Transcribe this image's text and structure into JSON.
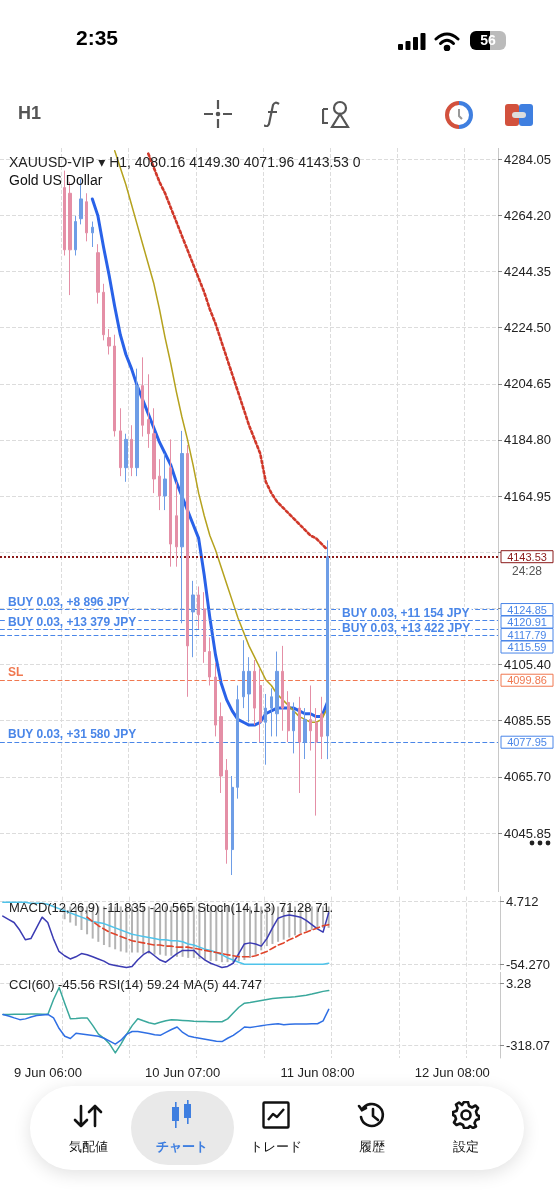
{
  "chart_data": [
    {
      "type": "other",
      "annotations": [
        "2:35",
        "56",
        "H1"
      ]
    },
    {
      "type": "candlestick",
      "title": "XAUUSD-VIP ▾ H1, 4080.16 4149.30 4071.96 4143.53 0",
      "subtitle": "Gold US Dollar",
      "categories": [
        null,
        null,
        null,
        null,
        null,
        null,
        null,
        null,
        null,
        null,
        null,
        null,
        null,
        null,
        null,
        null,
        null,
        null,
        null,
        null,
        null,
        null,
        null,
        null,
        null,
        null,
        null,
        null,
        null,
        null,
        null,
        null,
        null,
        null,
        null,
        null,
        null,
        null,
        null,
        null,
        null,
        null,
        null,
        null,
        null,
        null,
        null,
        null,
        null,
        null,
        null,
        null,
        null,
        null,
        null,
        null,
        null,
        null,
        null,
        null,
        null,
        null,
        null,
        null,
        null,
        null,
        null,
        null,
        null,
        null,
        null,
        null,
        null,
        null,
        null,
        null,
        null,
        null,
        null,
        null,
        null,
        null,
        null,
        null,
        null,
        null,
        null,
        null,
        null
      ],
      "ohlc": [
        null,
        null,
        null,
        null,
        null,
        null,
        null,
        null,
        null,
        null,
        null,
        [
          4274,
          4280,
          4250,
          4252
        ],
        [
          4272,
          4276,
          4236,
          4252
        ],
        [
          4252,
          4264,
          4250,
          4262
        ],
        [
          4263,
          4277,
          4261,
          4270
        ],
        [
          4269,
          4272,
          4255,
          4258
        ],
        [
          4258,
          4262,
          4253,
          4260
        ],
        [
          4251,
          4254,
          4233,
          4237
        ],
        [
          4237,
          4240,
          4220,
          4222
        ],
        [
          4221,
          4224,
          4215,
          4218
        ],
        [
          4218,
          4222,
          4186,
          4188
        ],
        [
          4188,
          4196,
          4172,
          4175
        ],
        [
          4175,
          4187,
          4170,
          4185
        ],
        [
          4185,
          4190,
          4172,
          4175
        ],
        [
          4175,
          4210,
          4172,
          4204
        ],
        [
          4204,
          4214,
          4186,
          4190
        ],
        [
          4192,
          4208,
          4182,
          4187
        ],
        [
          4187,
          4196,
          4166,
          4171
        ],
        [
          4172,
          4178,
          4160,
          4165
        ],
        [
          4165,
          4180,
          4160,
          4171
        ],
        [
          4175,
          4185,
          4140,
          4148
        ],
        [
          4158,
          4170,
          4140,
          4147
        ],
        [
          4147,
          4188,
          4120,
          4180
        ],
        [
          4180,
          4183,
          4094,
          4112
        ],
        [
          4124,
          4135,
          4108,
          4130
        ],
        [
          4130,
          4133,
          4118,
          4123
        ],
        [
          4125,
          4131,
          4106,
          4110
        ],
        [
          4110,
          4115,
          4098,
          4101
        ],
        [
          4101,
          4106,
          4080,
          4084
        ],
        [
          4087,
          4092,
          4060,
          4066
        ],
        [
          4068,
          4072,
          4035,
          4040
        ],
        [
          4040,
          4066,
          4031,
          4062
        ],
        [
          4062,
          4098,
          4058,
          4093
        ],
        [
          4094,
          4114,
          4090,
          4103
        ],
        [
          4095,
          4108,
          4085,
          4103
        ],
        [
          4103,
          4107,
          4084,
          4090
        ],
        [
          4098,
          4104,
          4078,
          4085
        ],
        [
          4085,
          4095,
          4070,
          4090
        ],
        [
          4090,
          4097,
          4080,
          4094
        ],
        [
          4088,
          4110,
          4080,
          4103
        ],
        [
          4103,
          4112,
          4082,
          4090
        ],
        [
          4092,
          4096,
          4078,
          4082
        ],
        [
          4082,
          4092,
          4074,
          4089
        ],
        [
          4090,
          4094,
          4060,
          4078
        ],
        [
          4078,
          4090,
          4072,
          4086
        ],
        [
          4086,
          4098,
          4075,
          4082
        ],
        [
          4085,
          4090,
          4052,
          4078
        ],
        [
          4088,
          4094,
          4072,
          4080
        ],
        [
          4080.16,
          4149.3,
          4071.96,
          4143.53
        ],
        null,
        null,
        null,
        null,
        null,
        null,
        null,
        null,
        null,
        null,
        null,
        null,
        null,
        null,
        null,
        null,
        null,
        null,
        null,
        null,
        null,
        null,
        null,
        null,
        null,
        null,
        null,
        null,
        null,
        null
      ],
      "colors": [
        null,
        null,
        null,
        null,
        null,
        null,
        null,
        null,
        null,
        null,
        null,
        "#e48fa6",
        "#e48fa6",
        "#6e9de6",
        "#6e9de6",
        "#e48fa6",
        "#6e9de6",
        "#e48fa6",
        "#e48fa6",
        "#e48fa6",
        "#e48fa6",
        "#e48fa6",
        "#6e9de6",
        "#e48fa6",
        "#6e9de6",
        "#e48fa6",
        "#e48fa6",
        "#e48fa6",
        "#e48fa6",
        "#6e9de6",
        "#e48fa6",
        "#e48fa6",
        "#6e9de6",
        "#e48fa6",
        "#6e9de6",
        "#e48fa6",
        "#e48fa6",
        "#e48fa6",
        "#e48fa6",
        "#e48fa6",
        "#e48fa6",
        "#6e9de6",
        "#6e9de6",
        "#6e9de6",
        "#6e9de6",
        "#e48fa6",
        "#e48fa6",
        "#6e9de6",
        "#6e9de6",
        "#6e9de6",
        "#e48fa6",
        "#e48fa6",
        "#6e9de6",
        "#e48fa6",
        "#6e9de6",
        "#e48fa6",
        "#e48fa6",
        "#e48fa6",
        "#6e9de6",
        null,
        null,
        null,
        null,
        null,
        null,
        null,
        null,
        null,
        null,
        null,
        null,
        null,
        null,
        null,
        null,
        null,
        null,
        null,
        null,
        null,
        null,
        null,
        null,
        null,
        null,
        null,
        null,
        null,
        null
      ],
      "series": [
        {
          "type": "line",
          "color": "#2962e8",
          "line_style": "solid",
          "values": [
            null,
            null,
            null,
            null,
            null,
            null,
            null,
            null,
            null,
            null,
            null,
            null,
            null,
            null,
            null,
            null,
            4270,
            4264,
            4253,
            4243,
            4232,
            4222,
            4215,
            4210,
            4204,
            4199,
            4194,
            4189,
            4184,
            4180,
            4176,
            4170,
            4165,
            4160,
            4155,
            4150,
            4137,
            4122,
            4109,
            4099,
            4093,
            4089,
            4086,
            4085,
            4084,
            4084,
            4085,
            4088,
            4089,
            4090,
            4090,
            4090,
            4090,
            4089,
            4088,
            4088,
            4087,
            4087,
            4092,
            null,
            null,
            null,
            null,
            null,
            null,
            null,
            null,
            null,
            null,
            null,
            null,
            null,
            null,
            null,
            null,
            null,
            null,
            null,
            null,
            null,
            null,
            null,
            null,
            null,
            null,
            null,
            null,
            null,
            null
          ]
        },
        {
          "type": "line",
          "color": "#d0382a",
          "line_style": "dotted",
          "values": [
            null,
            null,
            null,
            null,
            null,
            null,
            null,
            null,
            null,
            null,
            null,
            null,
            null,
            null,
            null,
            null,
            null,
            null,
            null,
            null,
            null,
            null,
            null,
            null,
            null,
            null,
            4286,
            4281,
            4276,
            4272,
            4267,
            4262,
            4257,
            4252,
            4247,
            4242,
            4237,
            4231,
            4226,
            4220,
            4214,
            4208,
            4202,
            4196,
            4190,
            4185,
            4180,
            4170,
            4166,
            4163,
            4161,
            4159,
            4157,
            4155,
            4153,
            4151,
            4150,
            4148,
            4146,
            null,
            null,
            null,
            null,
            null,
            null,
            null,
            null,
            null,
            null,
            null,
            null,
            null,
            null,
            null,
            null,
            null,
            null,
            null,
            null,
            null,
            null,
            null,
            null,
            null,
            null,
            null,
            null,
            null,
            null
          ]
        },
        {
          "type": "line",
          "color": "#b5a21e",
          "line_style": "solid",
          "values": [
            null,
            null,
            null,
            null,
            null,
            null,
            null,
            null,
            null,
            null,
            null,
            null,
            null,
            null,
            null,
            null,
            null,
            null,
            null,
            null,
            4287,
            4281,
            4275,
            4268,
            4261,
            4254,
            4247,
            4240,
            4231,
            4221,
            4212,
            4202,
            4193,
            4185,
            4176,
            4166,
            4158,
            4151,
            4146,
            4140,
            4134,
            4128,
            4122,
            4117,
            4112,
            4108,
            4104,
            4100,
            4098,
            4095,
            4093,
            4091,
            4089,
            4087,
            4086,
            4085,
            4085,
            4086,
            4090,
            null,
            null,
            null,
            null,
            null,
            null,
            null,
            null,
            null,
            null,
            null,
            null,
            null,
            null,
            null,
            null,
            null,
            null,
            null,
            null,
            null,
            null,
            null,
            null,
            null,
            null,
            null,
            null,
            null,
            null
          ]
        }
      ],
      "ylim": [
        4025,
        4288
      ],
      "yticks": [
        4284.05,
        {
          "value": 4264.2,
          "label": "4264.20"
        },
        4244.35,
        {
          "value": 4224.5,
          "label": "4224.50"
        },
        4204.65,
        {
          "value": 4184.8,
          "label": "4184.80"
        },
        4164.95,
        {
          "value": 4145.1,
          "label": null
        },
        {
          "value": 4125.25,
          "label": null
        },
        {
          "value": 4105.4,
          "label": "4105.40"
        },
        4085.55,
        {
          "value": 4065.7,
          "label": "4065.70"
        },
        4045.85
      ],
      "tick_labels": "y",
      "grid": true,
      "ref_lines": [
        {
          "axis": "y",
          "value": 4143.53,
          "color": "#8b1a1a",
          "line_style": "dotted"
        },
        {
          "axis": "y",
          "value": 4124.85,
          "label": "BUY 0.03, +8 896 JPY",
          "color": "#4a86e8",
          "line_style": "dashed"
        },
        {
          "axis": "y",
          "value": 4120.91,
          "label": "BUY 0.03, +11 154 JPY",
          "color": "#4a86e8",
          "line_style": "dashed"
        },
        {
          "axis": "y",
          "value": 4117.79,
          "label": "BUY 0.03, +13 379 JPY",
          "color": "#4a86e8",
          "line_style": "dashed"
        },
        {
          "axis": "y",
          "value": 4115.59,
          "label": "BUY 0.03, +13 422 JPY",
          "color": "#4a86e8",
          "line_style": "dashed"
        },
        {
          "axis": "y",
          "value": 4099.86,
          "label": "SL",
          "color": "#f07850",
          "line_style": "dashed"
        },
        {
          "axis": "y",
          "value": 4077.95,
          "label": "BUY 0.03, +31 580 JPY",
          "color": "#4a86e8",
          "line_style": "dashed"
        }
      ],
      "annotations": [
        "4143.53",
        "4124.85",
        "4120.91",
        "4117.79",
        "4115.59",
        "4099.86",
        "4077.95",
        "24:28"
      ]
    },
    {
      "type": "bar",
      "title": "MACD(12,26,9) -11.835 -20.565 Stoch(14,1,3) 71.28 71.",
      "categories": [
        null,
        null,
        null,
        null,
        null,
        null,
        null,
        null,
        null,
        null,
        null,
        null,
        null,
        null,
        null,
        null,
        null,
        null,
        null,
        null,
        null,
        null,
        null,
        null,
        null,
        null,
        null,
        null,
        null,
        null,
        null,
        null,
        null,
        null,
        null,
        null,
        null,
        null,
        null,
        null,
        null,
        null,
        null,
        null,
        null,
        null,
        null,
        null,
        null,
        null,
        null,
        null,
        null,
        null,
        null,
        null,
        null,
        null,
        null,
        null,
        null,
        null,
        null,
        null,
        null,
        null,
        null,
        null,
        null,
        null,
        null,
        null,
        null,
        null,
        null,
        null,
        null,
        null,
        null,
        null,
        null,
        null,
        null,
        null,
        null,
        null,
        null,
        null,
        null
      ],
      "ylim": [
        -58.7,
        9.1
      ],
      "yticks": [
        4.712,
        {
          "value": -54.27,
          "label": "-54.270"
        }
      ],
      "tick_labels": "y",
      "grid": true,
      "series": [
        {
          "color": "#b4b4b4",
          "values": [
            null,
            null,
            null,
            null,
            null,
            null,
            null,
            null,
            null,
            null,
            null,
            -12,
            -15,
            -18,
            -22,
            -26,
            -30,
            -33,
            -36,
            -38,
            -40,
            -42,
            -43,
            -43,
            -43,
            -44,
            -44,
            -45,
            -45,
            -46,
            -46,
            -47,
            -47,
            -48,
            -48,
            -49,
            -50,
            -51,
            -51,
            -52,
            -52,
            -52,
            -51,
            -50,
            -48,
            -45,
            -41,
            -37,
            -35,
            -33,
            -31,
            -29,
            -27,
            -25,
            -23,
            -22,
            -21,
            -20,
            -20,
            null,
            null,
            null,
            null,
            null,
            null,
            null,
            null,
            null,
            null,
            null,
            null,
            null,
            null,
            null,
            null,
            null,
            null,
            null,
            null,
            null,
            null,
            null,
            null,
            null,
            null,
            null,
            null,
            null,
            null
          ]
        },
        {
          "type": "line",
          "color": "#4fc3ea",
          "line_style": "solid",
          "values": [
            4,
            4,
            4,
            4,
            4,
            3,
            3,
            3,
            2,
            0,
            -2,
            -4,
            -6,
            -8,
            -10,
            -12,
            -14,
            -15,
            -16,
            -18,
            -20,
            -22,
            -24,
            -26,
            -27,
            -28,
            -29,
            -30,
            -31,
            -31,
            -32,
            -32,
            -33,
            -35,
            -36,
            -38,
            -40,
            -41,
            -43,
            -45,
            -48,
            -50,
            -52,
            -54,
            -54,
            -54,
            -54,
            -54,
            -54,
            -54,
            -54,
            -54,
            -54,
            -54,
            -54,
            -54,
            -54,
            -54,
            -53,
            null,
            null,
            null,
            null,
            null,
            null,
            null,
            null,
            null,
            null,
            null,
            null,
            null,
            null,
            null,
            null,
            null,
            null,
            null,
            null,
            null,
            null,
            null,
            null,
            null,
            null,
            null,
            null,
            null,
            null
          ]
        },
        {
          "type": "line",
          "color": "#3b3bb3",
          "line_style": "solid",
          "values": [
            -9,
            -12,
            -15,
            -22,
            -31,
            -30,
            -20,
            -10,
            -15,
            -30,
            -42,
            -46,
            -49,
            -47,
            -44,
            -45,
            -47,
            -49,
            -51,
            -54,
            -55,
            -56,
            -57,
            -56,
            -50,
            -45,
            -42,
            -46,
            -50,
            -52,
            -48,
            -44,
            -41,
            -41,
            -41,
            -46,
            -50,
            -53,
            -55,
            -57,
            -56,
            -53,
            -44,
            -35,
            -34,
            -35,
            -37,
            -30,
            -20,
            -11,
            -9,
            -8,
            -9,
            -10,
            -13,
            -17,
            -21,
            -24,
            -6,
            null,
            null,
            null,
            null,
            null,
            null,
            null,
            null,
            null,
            null,
            null,
            null,
            null,
            null,
            null,
            null,
            null,
            null,
            null,
            null,
            null,
            null,
            null,
            null,
            null,
            null,
            null,
            null,
            null,
            null
          ]
        },
        {
          "type": "line",
          "color": "#e0442a",
          "line_style": "dashed",
          "values": [
            null,
            null,
            null,
            null,
            null,
            null,
            null,
            null,
            null,
            null,
            null,
            null,
            null,
            null,
            null,
            -10,
            -14,
            -18,
            -21,
            -24,
            -26,
            -28,
            -30,
            -32,
            -33,
            -34,
            -35,
            -36,
            -36,
            -37,
            -37,
            -38,
            -38,
            -38,
            -39,
            -40,
            -41,
            -42,
            -43,
            -44,
            -45,
            -46,
            -47,
            -47,
            -47,
            -46,
            -44,
            -42,
            -39,
            -36,
            -34,
            -31,
            -29,
            -26,
            -24,
            -22,
            -20,
            -18,
            -17,
            null,
            null,
            null,
            null,
            null,
            null,
            null,
            null,
            null,
            null,
            null,
            null,
            null,
            null,
            null,
            null,
            null,
            null,
            null,
            null,
            null,
            null,
            null,
            null,
            null,
            null,
            null,
            null,
            null,
            null
          ]
        }
      ]
    },
    {
      "type": "line",
      "title": "CCI(60) -45.56 RSI(14) 59.24 MA(5) 44.747",
      "categories": [
        null,
        null,
        null,
        null,
        null,
        null,
        null,
        null,
        "9 Jun 06:00",
        null,
        null,
        null,
        null,
        null,
        null,
        null,
        null,
        null,
        null,
        null,
        null,
        null,
        null,
        null,
        null,
        null,
        null,
        null,
        null,
        null,
        null,
        null,
        "10 Jun 07:00",
        null,
        null,
        null,
        null,
        null,
        null,
        null,
        null,
        null,
        null,
        null,
        null,
        null,
        null,
        null,
        null,
        null,
        null,
        null,
        null,
        null,
        null,
        null,
        "11 Jun 08:00",
        null,
        null,
        null,
        null,
        null,
        null,
        null,
        null,
        null,
        null,
        null,
        null,
        null,
        null,
        null,
        null,
        null,
        null,
        null,
        null,
        null,
        null,
        null,
        "12 Jun 08:00",
        null,
        null,
        null,
        null,
        null,
        null,
        null,
        null
      ],
      "ylim": [
        -382,
        62
      ],
      "yticks": [
        3.28,
        -318.07
      ],
      "grid": true,
      "series": [
        {
          "color": "#3aa89c",
          "line_style": "solid",
          "values": [
            -157,
            -157,
            -156,
            -156,
            -156,
            -155,
            -155,
            -156,
            -156,
            -80,
            -18,
            -100,
            -179,
            -178,
            -176,
            -175,
            -215,
            -259,
            -280,
            -310,
            -356,
            -310,
            -260,
            -215,
            -179,
            -190,
            -200,
            -206,
            -197,
            -190,
            -184,
            -186,
            -188,
            -190,
            -192,
            -193,
            -194,
            -195,
            -195,
            -195,
            -180,
            -150,
            -120,
            -99,
            -95,
            -90,
            -85,
            -80,
            -75,
            -72,
            -70,
            -68,
            -66,
            -62,
            -58,
            -52,
            -45,
            -38,
            -34,
            null,
            null,
            null,
            null,
            null,
            null,
            null,
            null,
            null,
            null,
            null,
            null,
            null,
            null,
            null,
            null,
            null,
            null,
            null,
            null,
            null,
            null,
            null,
            null,
            null,
            null,
            null,
            null,
            null,
            null
          ]
        },
        {
          "color": "#2f6fe4",
          "line_style": "solid",
          "values": [
            -157,
            -165,
            -175,
            -184,
            -180,
            -170,
            -163,
            -160,
            -157,
            -175,
            -230,
            -270,
            -281,
            -254,
            -258,
            -262,
            -266,
            -270,
            -280,
            -295,
            -310,
            -290,
            -260,
            -245,
            -245,
            -250,
            -255,
            -262,
            -265,
            -250,
            -235,
            -222,
            -250,
            -268,
            -275,
            -280,
            -285,
            -290,
            -295,
            -297,
            -280,
            -265,
            -245,
            -222,
            -225,
            -220,
            -215,
            -211,
            -208,
            -205,
            -210,
            -208,
            -207,
            -206,
            -206,
            -205,
            -205,
            -190,
            -131,
            null,
            null,
            null,
            null,
            null,
            null,
            null,
            null,
            null,
            null,
            null,
            null,
            null,
            null,
            null,
            null,
            null,
            null,
            null,
            null,
            null,
            null,
            null,
            null,
            null,
            null,
            null,
            null,
            null,
            null
          ]
        }
      ]
    },
    {
      "type": "other",
      "annotations": [
        "気配値",
        "チャート",
        "トレード",
        "履歴",
        "設定"
      ]
    }
  ]
}
